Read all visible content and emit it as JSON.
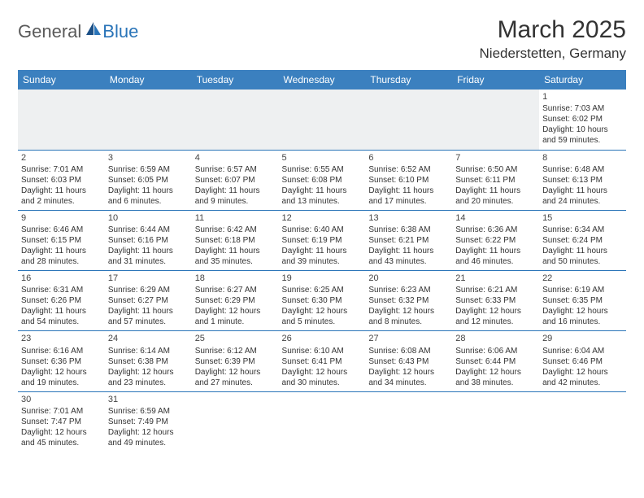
{
  "logo": {
    "general": "General",
    "blue": "Blue"
  },
  "title": "March 2025",
  "location": "Niederstetten, Germany",
  "colors": {
    "header_bg": "#3b80bf",
    "header_text": "#ffffff",
    "border": "#2a74b8",
    "empty_bg": "#eef0f1",
    "text": "#333333",
    "logo_gray": "#5a5a5a",
    "logo_blue": "#2a74b8"
  },
  "weekdays": [
    "Sunday",
    "Monday",
    "Tuesday",
    "Wednesday",
    "Thursday",
    "Friday",
    "Saturday"
  ],
  "weeks": [
    [
      null,
      null,
      null,
      null,
      null,
      null,
      {
        "n": "1",
        "sr": "Sunrise: 7:03 AM",
        "ss": "Sunset: 6:02 PM",
        "dl1": "Daylight: 10 hours",
        "dl2": "and 59 minutes."
      }
    ],
    [
      {
        "n": "2",
        "sr": "Sunrise: 7:01 AM",
        "ss": "Sunset: 6:03 PM",
        "dl1": "Daylight: 11 hours",
        "dl2": "and 2 minutes."
      },
      {
        "n": "3",
        "sr": "Sunrise: 6:59 AM",
        "ss": "Sunset: 6:05 PM",
        "dl1": "Daylight: 11 hours",
        "dl2": "and 6 minutes."
      },
      {
        "n": "4",
        "sr": "Sunrise: 6:57 AM",
        "ss": "Sunset: 6:07 PM",
        "dl1": "Daylight: 11 hours",
        "dl2": "and 9 minutes."
      },
      {
        "n": "5",
        "sr": "Sunrise: 6:55 AM",
        "ss": "Sunset: 6:08 PM",
        "dl1": "Daylight: 11 hours",
        "dl2": "and 13 minutes."
      },
      {
        "n": "6",
        "sr": "Sunrise: 6:52 AM",
        "ss": "Sunset: 6:10 PM",
        "dl1": "Daylight: 11 hours",
        "dl2": "and 17 minutes."
      },
      {
        "n": "7",
        "sr": "Sunrise: 6:50 AM",
        "ss": "Sunset: 6:11 PM",
        "dl1": "Daylight: 11 hours",
        "dl2": "and 20 minutes."
      },
      {
        "n": "8",
        "sr": "Sunrise: 6:48 AM",
        "ss": "Sunset: 6:13 PM",
        "dl1": "Daylight: 11 hours",
        "dl2": "and 24 minutes."
      }
    ],
    [
      {
        "n": "9",
        "sr": "Sunrise: 6:46 AM",
        "ss": "Sunset: 6:15 PM",
        "dl1": "Daylight: 11 hours",
        "dl2": "and 28 minutes."
      },
      {
        "n": "10",
        "sr": "Sunrise: 6:44 AM",
        "ss": "Sunset: 6:16 PM",
        "dl1": "Daylight: 11 hours",
        "dl2": "and 31 minutes."
      },
      {
        "n": "11",
        "sr": "Sunrise: 6:42 AM",
        "ss": "Sunset: 6:18 PM",
        "dl1": "Daylight: 11 hours",
        "dl2": "and 35 minutes."
      },
      {
        "n": "12",
        "sr": "Sunrise: 6:40 AM",
        "ss": "Sunset: 6:19 PM",
        "dl1": "Daylight: 11 hours",
        "dl2": "and 39 minutes."
      },
      {
        "n": "13",
        "sr": "Sunrise: 6:38 AM",
        "ss": "Sunset: 6:21 PM",
        "dl1": "Daylight: 11 hours",
        "dl2": "and 43 minutes."
      },
      {
        "n": "14",
        "sr": "Sunrise: 6:36 AM",
        "ss": "Sunset: 6:22 PM",
        "dl1": "Daylight: 11 hours",
        "dl2": "and 46 minutes."
      },
      {
        "n": "15",
        "sr": "Sunrise: 6:34 AM",
        "ss": "Sunset: 6:24 PM",
        "dl1": "Daylight: 11 hours",
        "dl2": "and 50 minutes."
      }
    ],
    [
      {
        "n": "16",
        "sr": "Sunrise: 6:31 AM",
        "ss": "Sunset: 6:26 PM",
        "dl1": "Daylight: 11 hours",
        "dl2": "and 54 minutes."
      },
      {
        "n": "17",
        "sr": "Sunrise: 6:29 AM",
        "ss": "Sunset: 6:27 PM",
        "dl1": "Daylight: 11 hours",
        "dl2": "and 57 minutes."
      },
      {
        "n": "18",
        "sr": "Sunrise: 6:27 AM",
        "ss": "Sunset: 6:29 PM",
        "dl1": "Daylight: 12 hours",
        "dl2": "and 1 minute."
      },
      {
        "n": "19",
        "sr": "Sunrise: 6:25 AM",
        "ss": "Sunset: 6:30 PM",
        "dl1": "Daylight: 12 hours",
        "dl2": "and 5 minutes."
      },
      {
        "n": "20",
        "sr": "Sunrise: 6:23 AM",
        "ss": "Sunset: 6:32 PM",
        "dl1": "Daylight: 12 hours",
        "dl2": "and 8 minutes."
      },
      {
        "n": "21",
        "sr": "Sunrise: 6:21 AM",
        "ss": "Sunset: 6:33 PM",
        "dl1": "Daylight: 12 hours",
        "dl2": "and 12 minutes."
      },
      {
        "n": "22",
        "sr": "Sunrise: 6:19 AM",
        "ss": "Sunset: 6:35 PM",
        "dl1": "Daylight: 12 hours",
        "dl2": "and 16 minutes."
      }
    ],
    [
      {
        "n": "23",
        "sr": "Sunrise: 6:16 AM",
        "ss": "Sunset: 6:36 PM",
        "dl1": "Daylight: 12 hours",
        "dl2": "and 19 minutes."
      },
      {
        "n": "24",
        "sr": "Sunrise: 6:14 AM",
        "ss": "Sunset: 6:38 PM",
        "dl1": "Daylight: 12 hours",
        "dl2": "and 23 minutes."
      },
      {
        "n": "25",
        "sr": "Sunrise: 6:12 AM",
        "ss": "Sunset: 6:39 PM",
        "dl1": "Daylight: 12 hours",
        "dl2": "and 27 minutes."
      },
      {
        "n": "26",
        "sr": "Sunrise: 6:10 AM",
        "ss": "Sunset: 6:41 PM",
        "dl1": "Daylight: 12 hours",
        "dl2": "and 30 minutes."
      },
      {
        "n": "27",
        "sr": "Sunrise: 6:08 AM",
        "ss": "Sunset: 6:43 PM",
        "dl1": "Daylight: 12 hours",
        "dl2": "and 34 minutes."
      },
      {
        "n": "28",
        "sr": "Sunrise: 6:06 AM",
        "ss": "Sunset: 6:44 PM",
        "dl1": "Daylight: 12 hours",
        "dl2": "and 38 minutes."
      },
      {
        "n": "29",
        "sr": "Sunrise: 6:04 AM",
        "ss": "Sunset: 6:46 PM",
        "dl1": "Daylight: 12 hours",
        "dl2": "and 42 minutes."
      }
    ],
    [
      {
        "n": "30",
        "sr": "Sunrise: 7:01 AM",
        "ss": "Sunset: 7:47 PM",
        "dl1": "Daylight: 12 hours",
        "dl2": "and 45 minutes."
      },
      {
        "n": "31",
        "sr": "Sunrise: 6:59 AM",
        "ss": "Sunset: 7:49 PM",
        "dl1": "Daylight: 12 hours",
        "dl2": "and 49 minutes."
      },
      null,
      null,
      null,
      null,
      null
    ]
  ]
}
